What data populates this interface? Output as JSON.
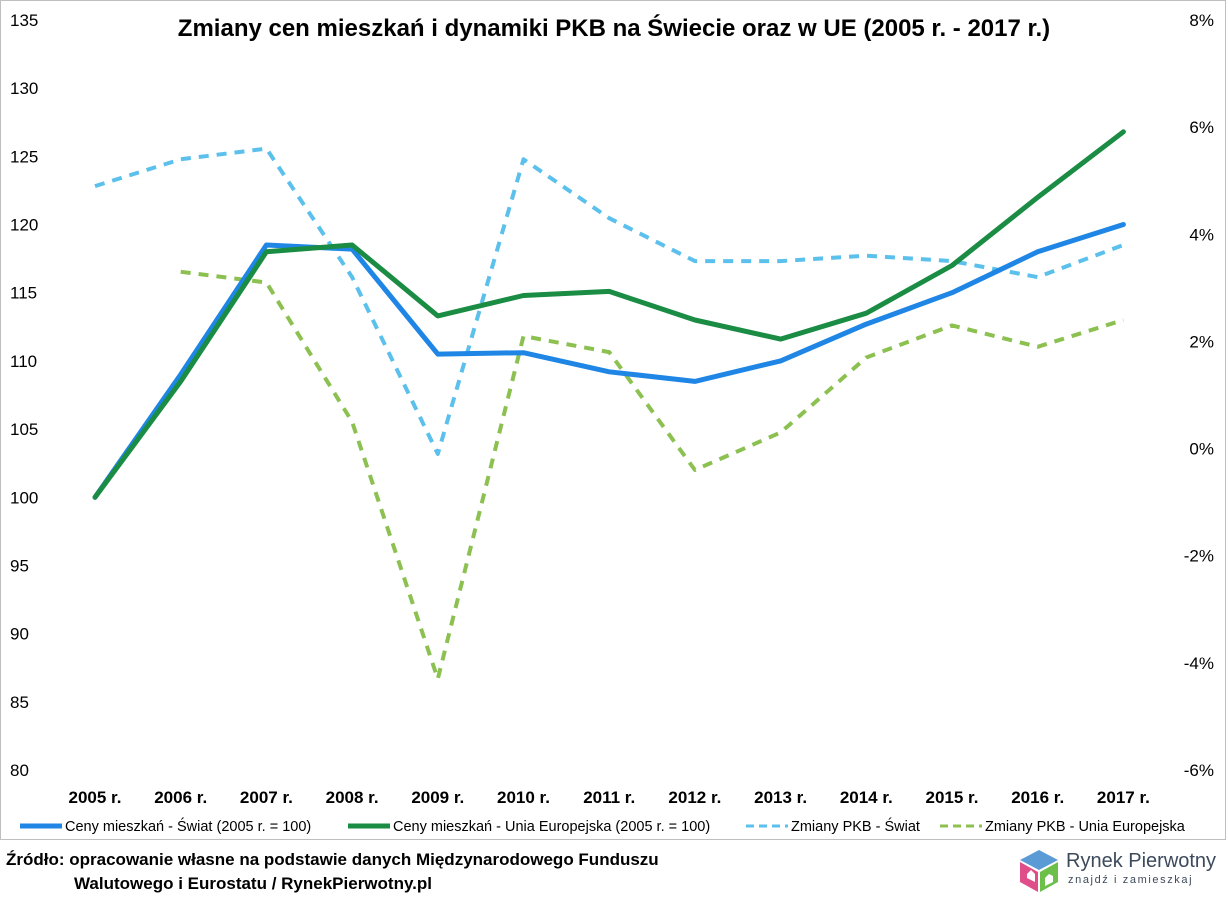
{
  "chart_data": {
    "type": "line",
    "title": "Zmiany cen mieszkań i dynamiki PKB na Świecie oraz w UE (2005 r. - 2017 r.)",
    "categories": [
      "2005 r.",
      "2006 r.",
      "2007 r.",
      "2008 r.",
      "2009 r.",
      "2010 r.",
      "2011 r.",
      "2012 r.",
      "2013 r.",
      "2014 r.",
      "2015 r.",
      "2016 r.",
      "2017 r."
    ],
    "y_left": {
      "min": 80,
      "max": 135,
      "ticks": [
        80,
        85,
        90,
        95,
        100,
        105,
        110,
        115,
        120,
        125,
        130,
        135
      ]
    },
    "y_right": {
      "min": -6,
      "max": 8,
      "ticks": [
        "-6%",
        "-4%",
        "-2%",
        "0%",
        "2%",
        "4%",
        "6%",
        "8%"
      ],
      "tick_values": [
        -6,
        -4,
        -2,
        0,
        2,
        4,
        6,
        8
      ]
    },
    "grid": false,
    "legend_position": "bottom",
    "series": [
      {
        "name": "Ceny mieszkań - Świat (2005 r. = 100)",
        "axis": "left",
        "style": "solid",
        "color": "#1f86e6",
        "values": [
          100,
          109,
          118.5,
          118.2,
          110.5,
          110.6,
          109.2,
          108.5,
          110,
          112.7,
          115,
          118,
          120
        ]
      },
      {
        "name": "Ceny mieszkań - Unia Europejska (2005 r. = 100)",
        "axis": "left",
        "style": "solid",
        "color": "#1a8c43",
        "values": [
          100,
          108.5,
          118,
          118.5,
          113.3,
          114.8,
          115.1,
          113,
          111.6,
          113.5,
          117,
          122,
          126.8
        ]
      },
      {
        "name": "Zmiany PKB - Świat",
        "axis": "right",
        "style": "dashed",
        "color": "#5bc0eb",
        "values": [
          4.9,
          5.4,
          5.6,
          3.2,
          -0.1,
          5.4,
          4.3,
          3.5,
          3.5,
          3.6,
          3.5,
          3.2,
          3.8
        ]
      },
      {
        "name": "Zmiany PKB - Unia Europejska",
        "axis": "right",
        "style": "dashed",
        "color": "#8cc152",
        "values": [
          null,
          3.3,
          3.1,
          0.5,
          -4.3,
          2.1,
          1.8,
          -0.4,
          0.3,
          1.7,
          2.3,
          1.9,
          2.4
        ]
      }
    ]
  },
  "footer": {
    "source_line1": "Źródło: opracowanie własne na podstawie danych Międzynarodowego Funduszu",
    "source_line2": "Walutowego i Eurostatu / RynekPierwotny.pl"
  },
  "logo": {
    "name": "Rynek Pierwotny",
    "tagline": "znajdź i zamieszkaj",
    "colors": {
      "blue": "#5a9bd5",
      "pink": "#e04e8a",
      "green": "#6cc04a",
      "purple": "#8e5bb5"
    }
  }
}
